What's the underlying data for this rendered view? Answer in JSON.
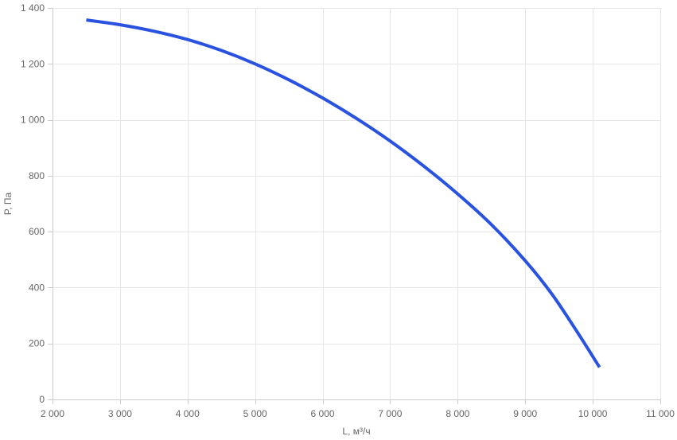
{
  "chart_data": {
    "type": "line",
    "title": "",
    "xlabel": "L, м³/ч",
    "ylabel": "P, Па",
    "xlim": [
      2000,
      11000
    ],
    "ylim": [
      0,
      1400
    ],
    "x_ticks": [
      2000,
      3000,
      4000,
      5000,
      6000,
      7000,
      8000,
      9000,
      10000,
      11000
    ],
    "x_tick_labels": [
      "2 000",
      "3 000",
      "4 000",
      "5 000",
      "6 000",
      "7 000",
      "8 000",
      "9 000",
      "10 000",
      "11 000"
    ],
    "y_ticks": [
      0,
      200,
      400,
      600,
      800,
      1000,
      1200,
      1400
    ],
    "y_tick_labels": [
      "0",
      "200",
      "400",
      "600",
      "800",
      "1 000",
      "1 200",
      "1 400"
    ],
    "grid": true,
    "legend": "none",
    "series": [
      {
        "color": "#2a52e0",
        "x": [
          2500,
          3000,
          3500,
          4000,
          4500,
          5000,
          5500,
          6000,
          6500,
          7000,
          7500,
          8000,
          8500,
          9000,
          9400,
          9800,
          10100
        ],
        "y": [
          1357,
          1340,
          1317,
          1287,
          1248,
          1200,
          1143,
          1078,
          1005,
          924,
          834,
          735,
          625,
          496,
          375,
          230,
          115
        ]
      }
    ]
  }
}
